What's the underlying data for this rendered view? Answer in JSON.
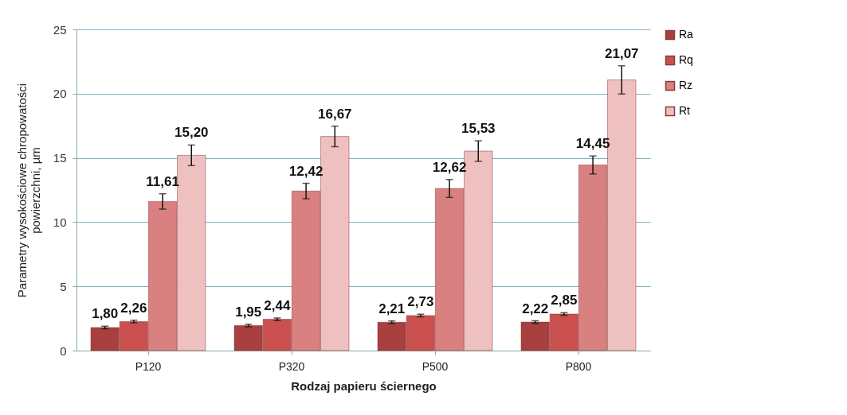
{
  "chart_data": {
    "type": "bar",
    "xlabel": "Rodzaj papieru  ściernego",
    "ylabel": "Parametry  wysokościowe chropowatości\npowierzchni, µm",
    "categories": [
      "P120",
      "P320",
      "P500",
      "P800"
    ],
    "series": [
      {
        "name": "Ra",
        "color": "#a8403f",
        "values": [
          1.8,
          1.95,
          2.21,
          2.22
        ],
        "errors": [
          0.1,
          0.1,
          0.1,
          0.1
        ],
        "value_labels": [
          "1,80",
          "1,95",
          "2,21",
          "2,22"
        ]
      },
      {
        "name": "Rq",
        "color": "#c9504f",
        "values": [
          2.26,
          2.44,
          2.73,
          2.85
        ],
        "errors": [
          0.1,
          0.1,
          0.1,
          0.1
        ],
        "value_labels": [
          "2,26",
          "2,44",
          "2,73",
          "2,85"
        ]
      },
      {
        "name": "Rz",
        "color": "#d98080",
        "values": [
          11.61,
          12.42,
          12.62,
          14.45
        ],
        "errors": [
          0.6,
          0.6,
          0.7,
          0.7
        ],
        "value_labels": [
          "11,61",
          "12,42",
          "12,62",
          "14,45"
        ]
      },
      {
        "name": "Rt",
        "color": "#eec0c0",
        "values": [
          15.2,
          16.67,
          15.53,
          21.07
        ],
        "errors": [
          0.8,
          0.8,
          0.8,
          1.1
        ],
        "value_labels": [
          "15,20",
          "16,67",
          "15,53",
          "21,07"
        ]
      }
    ],
    "ylim": [
      0,
      25
    ],
    "yticks": [
      0,
      5,
      10,
      15,
      20,
      25
    ],
    "grid": "y",
    "legend": "right"
  }
}
